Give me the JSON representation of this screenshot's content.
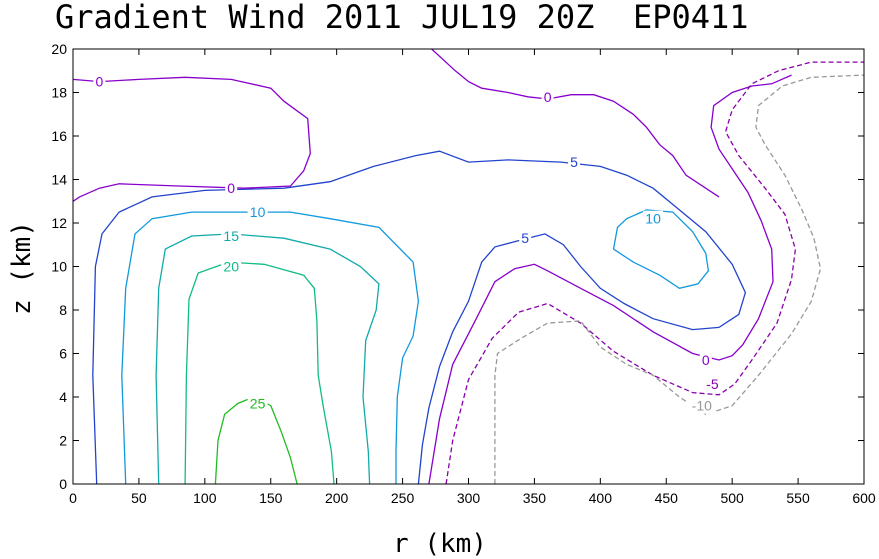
{
  "chart_data": {
    "type": "contour",
    "title": "Gradient Wind 2011 JUL19 20Z  EP0411",
    "xlabel": "r (km)",
    "ylabel": "z (km)",
    "xlim": [
      0,
      600
    ],
    "ylim": [
      0,
      20
    ],
    "x_ticks": [
      "0",
      "50",
      "100",
      "150",
      "200",
      "250",
      "300",
      "350",
      "400",
      "450",
      "500",
      "550",
      "600"
    ],
    "y_ticks": [
      "0",
      "2",
      "4",
      "6",
      "8",
      "10",
      "12",
      "14",
      "16",
      "18",
      "20"
    ],
    "grid": false,
    "colors": {
      "c25": "#22bb22",
      "c20": "#11bb88",
      "c15": "#11aaaa",
      "c10": "#1199dd",
      "c5": "#2244cc",
      "c0": "#8800cc",
      "cm5": "#8800aa",
      "cm10": "#999999"
    },
    "contours": [
      {
        "level": 25,
        "label": "25",
        "color_key": "c25",
        "dashed": false,
        "points": [
          [
            108,
            0
          ],
          [
            110,
            2
          ],
          [
            115,
            3.2
          ],
          [
            125,
            3.7
          ],
          [
            137,
            4.0
          ],
          [
            150,
            3.6
          ],
          [
            158,
            2.4
          ],
          [
            165,
            1.2
          ],
          [
            170,
            0
          ]
        ],
        "labels": [
          {
            "text": "25",
            "x": 140,
            "y": 3.7
          }
        ]
      },
      {
        "level": 20,
        "label": "20",
        "color_key": "c20",
        "dashed": false,
        "points": [
          [
            85,
            0
          ],
          [
            86,
            5
          ],
          [
            88,
            8.5
          ],
          [
            95,
            9.7
          ],
          [
            118,
            10.2
          ],
          [
            145,
            10.1
          ],
          [
            175,
            9.6
          ],
          [
            183,
            9.0
          ],
          [
            185,
            7.5
          ],
          [
            186,
            5
          ],
          [
            190,
            3.5
          ],
          [
            196,
            1.5
          ],
          [
            198,
            0
          ]
        ],
        "labels": [
          {
            "text": "20",
            "x": 120,
            "y": 10.0
          }
        ]
      },
      {
        "level": 15,
        "label": "15",
        "color_key": "c15",
        "dashed": false,
        "points": [
          [
            65,
            0
          ],
          [
            63,
            5
          ],
          [
            65,
            9
          ],
          [
            70,
            10.8
          ],
          [
            90,
            11.4
          ],
          [
            120,
            11.5
          ],
          [
            160,
            11.3
          ],
          [
            195,
            10.8
          ],
          [
            218,
            10.0
          ],
          [
            232,
            9.2
          ],
          [
            230,
            8.0
          ],
          [
            222,
            6.6
          ],
          [
            220,
            4
          ],
          [
            224,
            1.5
          ],
          [
            225,
            0
          ]
        ],
        "labels": [
          {
            "text": "15",
            "x": 120,
            "y": 11.4
          }
        ]
      },
      {
        "level": 10,
        "label": "10",
        "color_key": "c10",
        "dashed": false,
        "points": [
          [
            40,
            0
          ],
          [
            37,
            5
          ],
          [
            40,
            9
          ],
          [
            47,
            11.5
          ],
          [
            60,
            12.2
          ],
          [
            90,
            12.5
          ],
          [
            130,
            12.5
          ],
          [
            165,
            12.5
          ],
          [
            195,
            12.2
          ],
          [
            232,
            11.8
          ],
          [
            258,
            10.2
          ],
          [
            262,
            8.4
          ],
          [
            258,
            6.8
          ],
          [
            250,
            5.8
          ],
          [
            246,
            4
          ],
          [
            245,
            1.5
          ],
          [
            245,
            0
          ]
        ],
        "labels": [
          {
            "text": "10",
            "x": 140,
            "y": 12.5
          }
        ]
      },
      {
        "level": 10,
        "label": "10",
        "color_key": "c10",
        "dashed": false,
        "points": [
          [
            410,
            10.8
          ],
          [
            413,
            11.8
          ],
          [
            420,
            12.2
          ],
          [
            435,
            12.6
          ],
          [
            455,
            12.5
          ],
          [
            470,
            11.6
          ],
          [
            480,
            10.6
          ],
          [
            482,
            9.8
          ],
          [
            474,
            9.2
          ],
          [
            460,
            9.0
          ],
          [
            445,
            9.6
          ],
          [
            425,
            10.2
          ],
          [
            410,
            10.8
          ]
        ],
        "labels": [
          {
            "text": "10",
            "x": 440,
            "y": 12.2
          }
        ]
      },
      {
        "level": 5,
        "label": "5",
        "color_key": "c5",
        "dashed": false,
        "points": [
          [
            18,
            0
          ],
          [
            15,
            5
          ],
          [
            17,
            10
          ],
          [
            22,
            11.5
          ],
          [
            35,
            12.5
          ],
          [
            60,
            13.2
          ],
          [
            100,
            13.5
          ],
          [
            160,
            13.6
          ],
          [
            195,
            13.9
          ],
          [
            228,
            14.6
          ],
          [
            260,
            15.1
          ],
          [
            278,
            15.3
          ],
          [
            300,
            14.8
          ],
          [
            330,
            14.9
          ],
          [
            370,
            14.8
          ],
          [
            400,
            14.6
          ],
          [
            420,
            14.2
          ],
          [
            440,
            13.6
          ],
          [
            460,
            12.6
          ],
          [
            480,
            11.6
          ],
          [
            500,
            10.1
          ],
          [
            510,
            8.8
          ],
          [
            505,
            7.8
          ],
          [
            490,
            7.2
          ],
          [
            470,
            7.1
          ],
          [
            440,
            7.6
          ],
          [
            418,
            8.3
          ],
          [
            400,
            9.0
          ],
          [
            385,
            10.0
          ],
          [
            372,
            11.0
          ],
          [
            358,
            11.5
          ],
          [
            345,
            11.3
          ],
          [
            320,
            10.9
          ],
          [
            310,
            10.2
          ],
          [
            300,
            8.4
          ],
          [
            288,
            7.0
          ],
          [
            278,
            5.4
          ],
          [
            270,
            3.5
          ],
          [
            265,
            1.8
          ],
          [
            262,
            0
          ]
        ],
        "labels": [
          {
            "text": "5",
            "x": 380,
            "y": 14.8
          },
          {
            "text": "5",
            "x": 343,
            "y": 11.3
          }
        ]
      },
      {
        "level": 0,
        "label": "0",
        "color_key": "c0",
        "dashed": false,
        "points": [
          [
            270,
            0
          ],
          [
            278,
            3
          ],
          [
            288,
            5.5
          ],
          [
            305,
            7.5
          ],
          [
            320,
            9.3
          ],
          [
            335,
            9.9
          ],
          [
            350,
            10.1
          ],
          [
            360,
            9.8
          ],
          [
            385,
            9.0
          ],
          [
            410,
            8.2
          ],
          [
            440,
            7.0
          ],
          [
            470,
            6.0
          ],
          [
            490,
            5.7
          ],
          [
            500,
            5.9
          ],
          [
            508,
            6.4
          ],
          [
            520,
            7.6
          ],
          [
            531,
            9.3
          ],
          [
            530,
            10.8
          ],
          [
            522,
            12.1
          ],
          [
            512,
            13.4
          ],
          [
            490,
            15.4
          ],
          [
            484,
            16.4
          ],
          [
            486,
            17.4
          ],
          [
            500,
            18.0
          ],
          [
            515,
            18.3
          ],
          [
            530,
            18.4
          ],
          [
            545,
            18.8
          ]
        ],
        "labels": [
          {
            "text": "0",
            "x": 480,
            "y": 5.7
          }
        ]
      },
      {
        "level": 0,
        "label": "0",
        "color_key": "c0",
        "dashed": false,
        "points": [
          [
            0,
            18.6
          ],
          [
            20,
            18.5
          ],
          [
            50,
            18.6
          ],
          [
            85,
            18.7
          ],
          [
            120,
            18.6
          ],
          [
            150,
            18.2
          ],
          [
            160,
            17.6
          ],
          [
            178,
            16.8
          ],
          [
            180,
            15.2
          ],
          [
            175,
            14.4
          ],
          [
            165,
            13.7
          ],
          [
            130,
            13.6
          ],
          [
            80,
            13.7
          ],
          [
            35,
            13.8
          ],
          [
            20,
            13.6
          ],
          [
            5,
            13.2
          ],
          [
            0,
            13.0
          ]
        ],
        "labels": [
          {
            "text": "0",
            "x": 20,
            "y": 18.5
          },
          {
            "text": "0",
            "x": 120,
            "y": 13.6
          }
        ]
      },
      {
        "level": 0,
        "label": "0",
        "color_key": "c0",
        "dashed": false,
        "points": [
          [
            272,
            20
          ],
          [
            290,
            19.0
          ],
          [
            300,
            18.5
          ],
          [
            310,
            18.2
          ],
          [
            330,
            18.0
          ],
          [
            345,
            17.8
          ],
          [
            360,
            17.7
          ],
          [
            378,
            17.9
          ],
          [
            395,
            17.9
          ],
          [
            410,
            17.6
          ],
          [
            425,
            17.0
          ],
          [
            435,
            16.4
          ],
          [
            445,
            15.6
          ],
          [
            455,
            15.1
          ],
          [
            465,
            14.2
          ],
          [
            490,
            13.2
          ]
        ],
        "labels": [
          {
            "text": "0",
            "x": 360,
            "y": 17.8
          }
        ]
      },
      {
        "level": -5,
        "label": "-5",
        "color_key": "cm5",
        "dashed": true,
        "points": [
          [
            283,
            0
          ],
          [
            288,
            2
          ],
          [
            300,
            4.8
          ],
          [
            318,
            6.7
          ],
          [
            338,
            7.9
          ],
          [
            360,
            8.3
          ],
          [
            385,
            7.4
          ],
          [
            410,
            6.1
          ],
          [
            440,
            5.0
          ],
          [
            470,
            4.2
          ],
          [
            490,
            4.1
          ],
          [
            502,
            4.6
          ],
          [
            515,
            5.7
          ],
          [
            534,
            7.4
          ],
          [
            545,
            9.4
          ],
          [
            548,
            10.8
          ],
          [
            540,
            12.4
          ],
          [
            525,
            13.6
          ],
          [
            505,
            15.1
          ],
          [
            495,
            16.2
          ],
          [
            500,
            17.2
          ],
          [
            515,
            18.4
          ],
          [
            535,
            19.0
          ],
          [
            560,
            19.4
          ],
          [
            600,
            19.4
          ]
        ],
        "labels": [
          {
            "text": "-5",
            "x": 485,
            "y": 4.6
          }
        ]
      },
      {
        "level": -10,
        "label": "-10",
        "color_key": "cm10",
        "dashed": true,
        "points": [
          [
            320,
            0
          ],
          [
            320,
            3
          ],
          [
            320,
            5.0
          ],
          [
            322,
            6.0
          ],
          [
            340,
            6.7
          ],
          [
            360,
            7.4
          ],
          [
            385,
            7.5
          ],
          [
            400,
            6.3
          ],
          [
            420,
            5.5
          ],
          [
            440,
            5.0
          ],
          [
            460,
            4.0
          ],
          [
            480,
            3.2
          ],
          [
            500,
            3.6
          ],
          [
            520,
            5.0
          ],
          [
            545,
            6.9
          ],
          [
            560,
            8.4
          ],
          [
            567,
            9.9
          ],
          [
            562,
            11.3
          ],
          [
            553,
            12.6
          ],
          [
            540,
            14.2
          ],
          [
            525,
            15.6
          ],
          [
            518,
            16.4
          ],
          [
            520,
            17.4
          ],
          [
            538,
            18.3
          ],
          [
            560,
            18.7
          ],
          [
            600,
            18.8
          ]
        ],
        "labels": [
          {
            "text": "-10",
            "x": 477,
            "y": 3.6
          }
        ]
      }
    ]
  }
}
